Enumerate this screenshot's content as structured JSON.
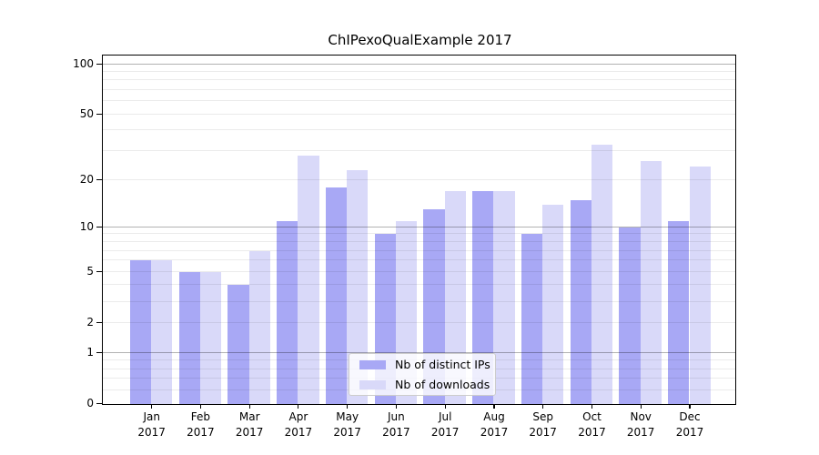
{
  "title": "ChIPexoQualExample 2017",
  "chart_data": {
    "type": "bar",
    "title": "ChIPexoQualExample 2017",
    "scale": "log1p",
    "categories": [
      "Jan",
      "Feb",
      "Mar",
      "Apr",
      "May",
      "Jun",
      "Jul",
      "Aug",
      "Sep",
      "Oct",
      "Nov",
      "Dec"
    ],
    "year": "2017",
    "series": [
      {
        "key": "ips",
        "name": "Nb of distinct IPs",
        "color": "#a8a8f5",
        "values": [
          6,
          5,
          4,
          11,
          18,
          9,
          13,
          17,
          9,
          15,
          10,
          11
        ]
      },
      {
        "key": "downloads",
        "name": "Nb of downloads",
        "color": "#d9d9f9",
        "values": [
          6,
          5,
          7,
          28,
          23,
          11,
          17,
          17,
          14,
          33,
          26,
          24
        ]
      }
    ],
    "xlabel": "",
    "ylabel": "",
    "ylim": [
      0,
      112
    ],
    "yticks": [
      100,
      50,
      20,
      10,
      5,
      2,
      1,
      0
    ],
    "major_grid": [
      1,
      10,
      100
    ],
    "minor_grid": [
      0.2,
      0.4,
      0.6,
      0.8,
      2,
      3,
      4,
      5,
      6,
      7,
      8,
      9,
      20,
      30,
      40,
      50,
      60,
      70,
      80,
      90
    ],
    "grid": true,
    "legend_position": "bottom-center"
  },
  "legend": {
    "items": [
      {
        "label": "Nb of distinct IPs"
      },
      {
        "label": "Nb of downloads"
      }
    ]
  }
}
